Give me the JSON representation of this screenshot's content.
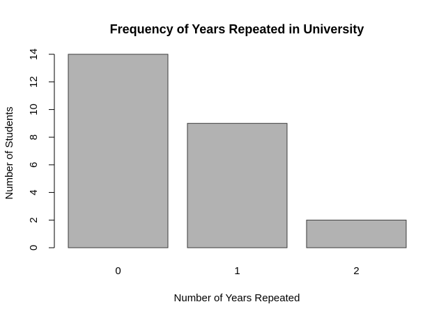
{
  "chart_data": {
    "type": "bar",
    "title": "Frequency of Years Repeated in University",
    "xlabel": "Number of Years Repeated",
    "ylabel": "Number of Students",
    "categories": [
      "0",
      "1",
      "2"
    ],
    "values": [
      14,
      9,
      2
    ],
    "ylim": [
      0,
      14
    ],
    "yticks": [
      0,
      2,
      4,
      6,
      8,
      10,
      12,
      14
    ],
    "bar_color": "#b2b2b2",
    "bar_border_color": "#3a3a3a",
    "grid": false,
    "legend": false
  }
}
